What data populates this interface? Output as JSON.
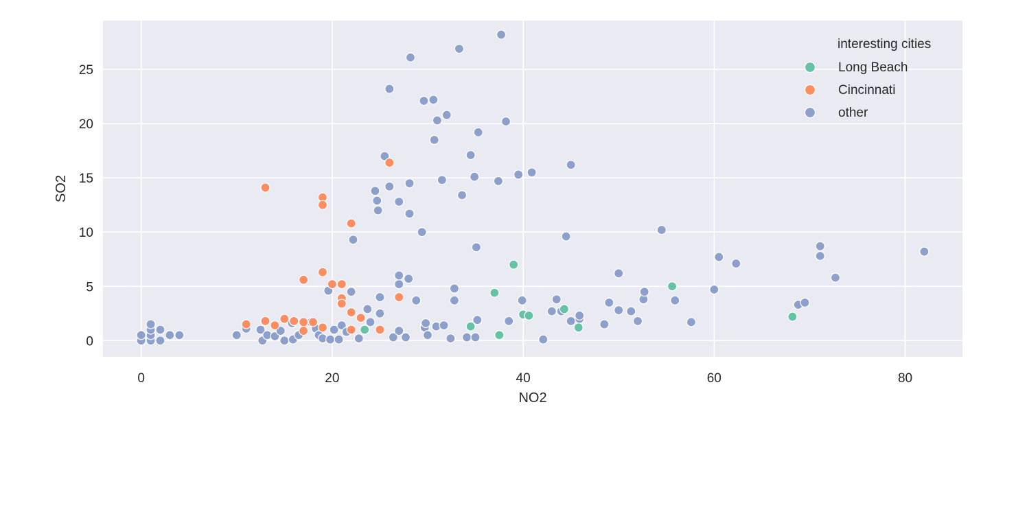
{
  "chart_data": {
    "type": "scatter",
    "title": "",
    "xlabel": "NO2",
    "ylabel": "SO2",
    "xlim": [
      -4,
      86
    ],
    "ylim": [
      -1.5,
      29.5
    ],
    "x_ticks": [
      0,
      20,
      40,
      60,
      80
    ],
    "y_ticks": [
      0,
      5,
      10,
      15,
      20,
      25
    ],
    "grid": true,
    "legend": {
      "title": "interesting cities",
      "placement": "top-right"
    },
    "series": [
      {
        "name": "Long Beach",
        "color": "#66c2a5",
        "points": [
          [
            23.4,
            1.0
          ],
          [
            34.5,
            1.3
          ],
          [
            37.0,
            4.4
          ],
          [
            37.5,
            0.5
          ],
          [
            39.0,
            7.0
          ],
          [
            40.0,
            2.4
          ],
          [
            40.6,
            2.3
          ],
          [
            44.3,
            2.9
          ],
          [
            45.8,
            1.2
          ],
          [
            55.6,
            5.0
          ],
          [
            68.2,
            2.2
          ]
        ]
      },
      {
        "name": "Cincinnati",
        "color": "#fc8d62",
        "points": [
          [
            11.0,
            1.5
          ],
          [
            13.0,
            14.1
          ],
          [
            13.0,
            1.8
          ],
          [
            14.0,
            1.4
          ],
          [
            15.0,
            2.0
          ],
          [
            16.0,
            1.8
          ],
          [
            17.0,
            1.7
          ],
          [
            17.0,
            5.6
          ],
          [
            17.0,
            0.9
          ],
          [
            18.0,
            1.7
          ],
          [
            19.0,
            13.2
          ],
          [
            19.0,
            12.5
          ],
          [
            19.0,
            6.3
          ],
          [
            19.0,
            1.2
          ],
          [
            20.0,
            5.2
          ],
          [
            21.0,
            5.2
          ],
          [
            21.0,
            3.9
          ],
          [
            21.0,
            3.4
          ],
          [
            22.0,
            10.8
          ],
          [
            22.0,
            2.6
          ],
          [
            22.0,
            1.0
          ],
          [
            23.0,
            2.1
          ],
          [
            25.0,
            1.0
          ],
          [
            26.0,
            16.4
          ],
          [
            27.0,
            4.0
          ]
        ]
      },
      {
        "name": "other",
        "color": "#8da0cb",
        "points": [
          [
            0.0,
            0.0
          ],
          [
            0.0,
            0.5
          ],
          [
            1.0,
            0.0
          ],
          [
            1.0,
            0.5
          ],
          [
            1.0,
            1.0
          ],
          [
            1.0,
            1.5
          ],
          [
            2.0,
            0.0
          ],
          [
            2.0,
            1.0
          ],
          [
            3.0,
            0.5
          ],
          [
            4.0,
            0.5
          ],
          [
            10.0,
            0.5
          ],
          [
            11.0,
            1.1
          ],
          [
            12.5,
            1.0
          ],
          [
            12.7,
            0.0
          ],
          [
            13.2,
            0.5
          ],
          [
            14.0,
            0.4
          ],
          [
            14.6,
            0.9
          ],
          [
            15.0,
            0.0
          ],
          [
            15.8,
            1.6
          ],
          [
            15.9,
            0.1
          ],
          [
            16.5,
            0.5
          ],
          [
            17.8,
            1.7
          ],
          [
            18.3,
            1.1
          ],
          [
            18.6,
            0.5
          ],
          [
            19.0,
            0.2
          ],
          [
            19.6,
            4.6
          ],
          [
            19.8,
            0.1
          ],
          [
            20.2,
            1.0
          ],
          [
            20.7,
            0.1
          ],
          [
            21.0,
            1.4
          ],
          [
            21.5,
            0.8
          ],
          [
            22.0,
            4.5
          ],
          [
            22.2,
            9.3
          ],
          [
            22.8,
            0.2
          ],
          [
            23.7,
            2.9
          ],
          [
            24.0,
            1.7
          ],
          [
            24.5,
            13.8
          ],
          [
            24.7,
            12.9
          ],
          [
            24.8,
            12.0
          ],
          [
            25.0,
            4.0
          ],
          [
            25.0,
            2.5
          ],
          [
            25.5,
            17.0
          ],
          [
            26.0,
            14.2
          ],
          [
            26.0,
            23.2
          ],
          [
            26.4,
            0.3
          ],
          [
            27.0,
            12.8
          ],
          [
            27.0,
            5.2
          ],
          [
            27.0,
            6.0
          ],
          [
            27.0,
            0.9
          ],
          [
            27.7,
            0.3
          ],
          [
            28.0,
            5.7
          ],
          [
            28.1,
            14.5
          ],
          [
            28.1,
            11.7
          ],
          [
            28.2,
            26.1
          ],
          [
            28.8,
            3.7
          ],
          [
            29.4,
            10.0
          ],
          [
            29.6,
            22.1
          ],
          [
            29.7,
            1.2
          ],
          [
            29.8,
            1.6
          ],
          [
            30.0,
            0.5
          ],
          [
            30.6,
            22.2
          ],
          [
            30.7,
            18.5
          ],
          [
            30.9,
            1.3
          ],
          [
            31.0,
            20.3
          ],
          [
            31.5,
            14.8
          ],
          [
            31.7,
            1.4
          ],
          [
            32.0,
            20.8
          ],
          [
            32.4,
            0.2
          ],
          [
            32.8,
            4.8
          ],
          [
            32.8,
            3.7
          ],
          [
            33.3,
            26.9
          ],
          [
            33.6,
            13.4
          ],
          [
            34.1,
            0.3
          ],
          [
            34.5,
            17.1
          ],
          [
            34.9,
            15.1
          ],
          [
            35.0,
            0.3
          ],
          [
            35.1,
            8.6
          ],
          [
            35.2,
            1.9
          ],
          [
            35.3,
            19.2
          ],
          [
            37.4,
            14.7
          ],
          [
            37.7,
            28.2
          ],
          [
            38.2,
            20.2
          ],
          [
            38.5,
            1.8
          ],
          [
            39.5,
            15.3
          ],
          [
            39.9,
            3.7
          ],
          [
            40.9,
            15.5
          ],
          [
            42.1,
            0.1
          ],
          [
            43.0,
            2.7
          ],
          [
            43.5,
            3.8
          ],
          [
            44.0,
            2.7
          ],
          [
            44.5,
            9.6
          ],
          [
            45.0,
            1.8
          ],
          [
            45.0,
            16.2
          ],
          [
            45.9,
            2.0
          ],
          [
            45.9,
            2.3
          ],
          [
            48.5,
            1.5
          ],
          [
            49.0,
            3.5
          ],
          [
            50.0,
            6.2
          ],
          [
            50.0,
            2.8
          ],
          [
            51.3,
            2.7
          ],
          [
            52.0,
            1.8
          ],
          [
            52.6,
            3.8
          ],
          [
            52.7,
            4.5
          ],
          [
            54.5,
            10.2
          ],
          [
            55.9,
            3.7
          ],
          [
            57.6,
            1.7
          ],
          [
            60.0,
            4.7
          ],
          [
            60.5,
            7.7
          ],
          [
            62.3,
            7.1
          ],
          [
            68.8,
            3.3
          ],
          [
            69.5,
            3.5
          ],
          [
            71.1,
            8.7
          ],
          [
            71.1,
            7.8
          ],
          [
            72.7,
            5.8
          ],
          [
            82.0,
            8.2
          ]
        ]
      }
    ]
  }
}
